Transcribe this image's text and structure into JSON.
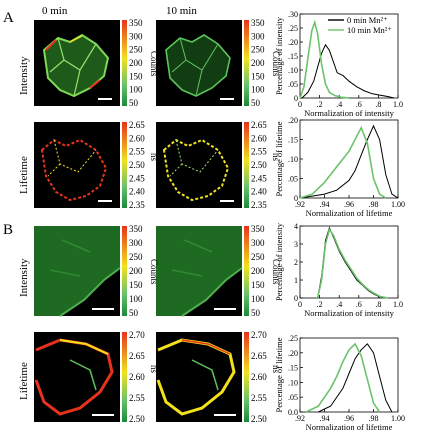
{
  "panel_labels": [
    "A",
    "B"
  ],
  "col_headers": [
    "0 min",
    "10 min"
  ],
  "row_labels": [
    "Intensity",
    "Lifetime",
    "Intensity",
    "Lifetime"
  ],
  "colorbars": [
    {
      "ticks": [
        "350",
        "300",
        "250",
        "200",
        "150",
        "100",
        "50"
      ],
      "title": "Counts"
    },
    {
      "ticks": [
        "2.65",
        "2.60",
        "2.55",
        "2.50",
        "2.45",
        "2.40",
        "2.35"
      ],
      "title": "ns"
    },
    {
      "ticks": [
        "350",
        "300",
        "250",
        "200",
        "150",
        "100",
        "50"
      ],
      "title": "Counts"
    },
    {
      "ticks": [
        "2.70",
        "2.65",
        "2.60",
        "2.55",
        "2.50"
      ],
      "title": "ns"
    }
  ],
  "colors": {
    "black_series": "#000000",
    "green_series": "#6cc36c",
    "cbar_top": "#e8331c",
    "cbar_mid": "#f2e21c",
    "cbar_bottom": "#1a8a3a"
  },
  "chart_data": [
    {
      "type": "line",
      "panel": "A-intensity",
      "ylabel": "Percentage of intensity",
      "xlabel": "Normalization of intensity",
      "xlim": [
        0,
        1.0
      ],
      "ylim": [
        0,
        0.3
      ],
      "xticks": [
        "0",
        ".2",
        ".4",
        ".6",
        ".8",
        "1.0"
      ],
      "yticks": [
        "0",
        ".05",
        ".10",
        ".15",
        ".20",
        ".25",
        ".30"
      ],
      "legend": [
        "0 min Mn²⁺",
        "10 min Mn²⁺"
      ],
      "series": [
        {
          "name": "0 min Mn²⁺",
          "color": "#000000",
          "x": [
            0.02,
            0.08,
            0.14,
            0.18,
            0.22,
            0.26,
            0.3,
            0.34,
            0.38,
            0.44,
            0.5,
            0.58,
            0.66,
            0.74,
            0.82,
            0.9,
            0.96
          ],
          "y": [
            0.0,
            0.02,
            0.06,
            0.11,
            0.16,
            0.19,
            0.17,
            0.13,
            0.09,
            0.08,
            0.06,
            0.04,
            0.025,
            0.015,
            0.01,
            0.005,
            0.0
          ]
        },
        {
          "name": "10 min Mn²⁺",
          "color": "#6cc36c",
          "x": [
            0.0,
            0.04,
            0.08,
            0.12,
            0.15,
            0.18,
            0.22,
            0.26,
            0.3,
            0.36,
            0.42,
            0.5
          ],
          "y": [
            0.0,
            0.04,
            0.14,
            0.24,
            0.27,
            0.23,
            0.12,
            0.05,
            0.02,
            0.008,
            0.003,
            0.0
          ]
        }
      ]
    },
    {
      "type": "line",
      "panel": "A-lifetime",
      "ylabel": "Percentage of lifetime",
      "xlabel": "Normalization of lifetime",
      "xlim": [
        0.92,
        1.0
      ],
      "ylim": [
        0,
        0.2
      ],
      "xticks": [
        ".92",
        ".94",
        ".96",
        ".98",
        "1.00"
      ],
      "yticks": [
        "0",
        ".05",
        ".10",
        ".15",
        ".20"
      ],
      "series": [
        {
          "name": "",
          "color": "#000000",
          "x": [
            0.92,
            0.93,
            0.94,
            0.95,
            0.96,
            0.965,
            0.97,
            0.975,
            0.98,
            0.985,
            0.99,
            0.995,
            1.0
          ],
          "y": [
            0.0,
            0.005,
            0.01,
            0.02,
            0.045,
            0.07,
            0.11,
            0.15,
            0.185,
            0.15,
            0.06,
            0.01,
            0.0
          ]
        },
        {
          "name": "",
          "color": "#6cc36c",
          "x": [
            0.92,
            0.93,
            0.94,
            0.95,
            0.955,
            0.96,
            0.965,
            0.97,
            0.975,
            0.98,
            0.985,
            0.99
          ],
          "y": [
            0.0,
            0.01,
            0.04,
            0.08,
            0.1,
            0.12,
            0.15,
            0.18,
            0.14,
            0.05,
            0.01,
            0.0
          ]
        }
      ]
    },
    {
      "type": "line",
      "panel": "B-intensity",
      "ylabel": "Percentage of intensity",
      "xlabel": "Normalization of intensity",
      "xlim": [
        0,
        1.0
      ],
      "ylim": [
        0,
        4
      ],
      "xticks": [
        "0",
        ".2",
        ".4",
        ".6",
        ".8",
        "1.0"
      ],
      "yticks": [
        "0",
        "1",
        "2",
        "3",
        "4"
      ],
      "series": [
        {
          "name": "",
          "color": "#000000",
          "x": [
            0.18,
            0.22,
            0.26,
            0.3,
            0.34,
            0.4,
            0.46,
            0.52,
            0.58,
            0.64,
            0.7,
            0.76,
            0.82,
            0.9
          ],
          "y": [
            0.0,
            1.2,
            3.2,
            3.9,
            3.4,
            2.6,
            2.0,
            1.5,
            1.0,
            0.7,
            0.4,
            0.2,
            0.05,
            0.0
          ]
        },
        {
          "name": "",
          "color": "#6cc36c",
          "x": [
            0.18,
            0.22,
            0.26,
            0.3,
            0.34,
            0.4,
            0.46,
            0.52,
            0.58,
            0.64,
            0.7,
            0.76,
            0.82,
            0.9
          ],
          "y": [
            0.0,
            1.0,
            3.0,
            3.8,
            3.5,
            2.7,
            2.1,
            1.6,
            1.1,
            0.75,
            0.45,
            0.25,
            0.08,
            0.0
          ]
        }
      ]
    },
    {
      "type": "line",
      "panel": "B-lifetime",
      "ylabel": "Percentage of lifetime",
      "xlabel": "Normalization of lifetime",
      "xlim": [
        0.92,
        1.0
      ],
      "ylim": [
        0,
        0.25
      ],
      "xticks": [
        ".92",
        ".94",
        ".96",
        ".98",
        "1.00"
      ],
      "yticks": [
        "0.0",
        ".05",
        ".10",
        ".15",
        ".20",
        ".25"
      ],
      "series": [
        {
          "name": "",
          "color": "#000000",
          "x": [
            0.935,
            0.945,
            0.955,
            0.96,
            0.965,
            0.97,
            0.975,
            0.98,
            0.985,
            0.99,
            0.995
          ],
          "y": [
            0.0,
            0.02,
            0.08,
            0.13,
            0.18,
            0.21,
            0.23,
            0.2,
            0.12,
            0.04,
            0.0
          ]
        },
        {
          "name": "",
          "color": "#6cc36c",
          "x": [
            0.925,
            0.935,
            0.945,
            0.95,
            0.955,
            0.96,
            0.965,
            0.97,
            0.975,
            0.98,
            0.985
          ],
          "y": [
            0.0,
            0.02,
            0.08,
            0.12,
            0.17,
            0.21,
            0.23,
            0.19,
            0.11,
            0.03,
            0.0
          ]
        }
      ]
    }
  ]
}
